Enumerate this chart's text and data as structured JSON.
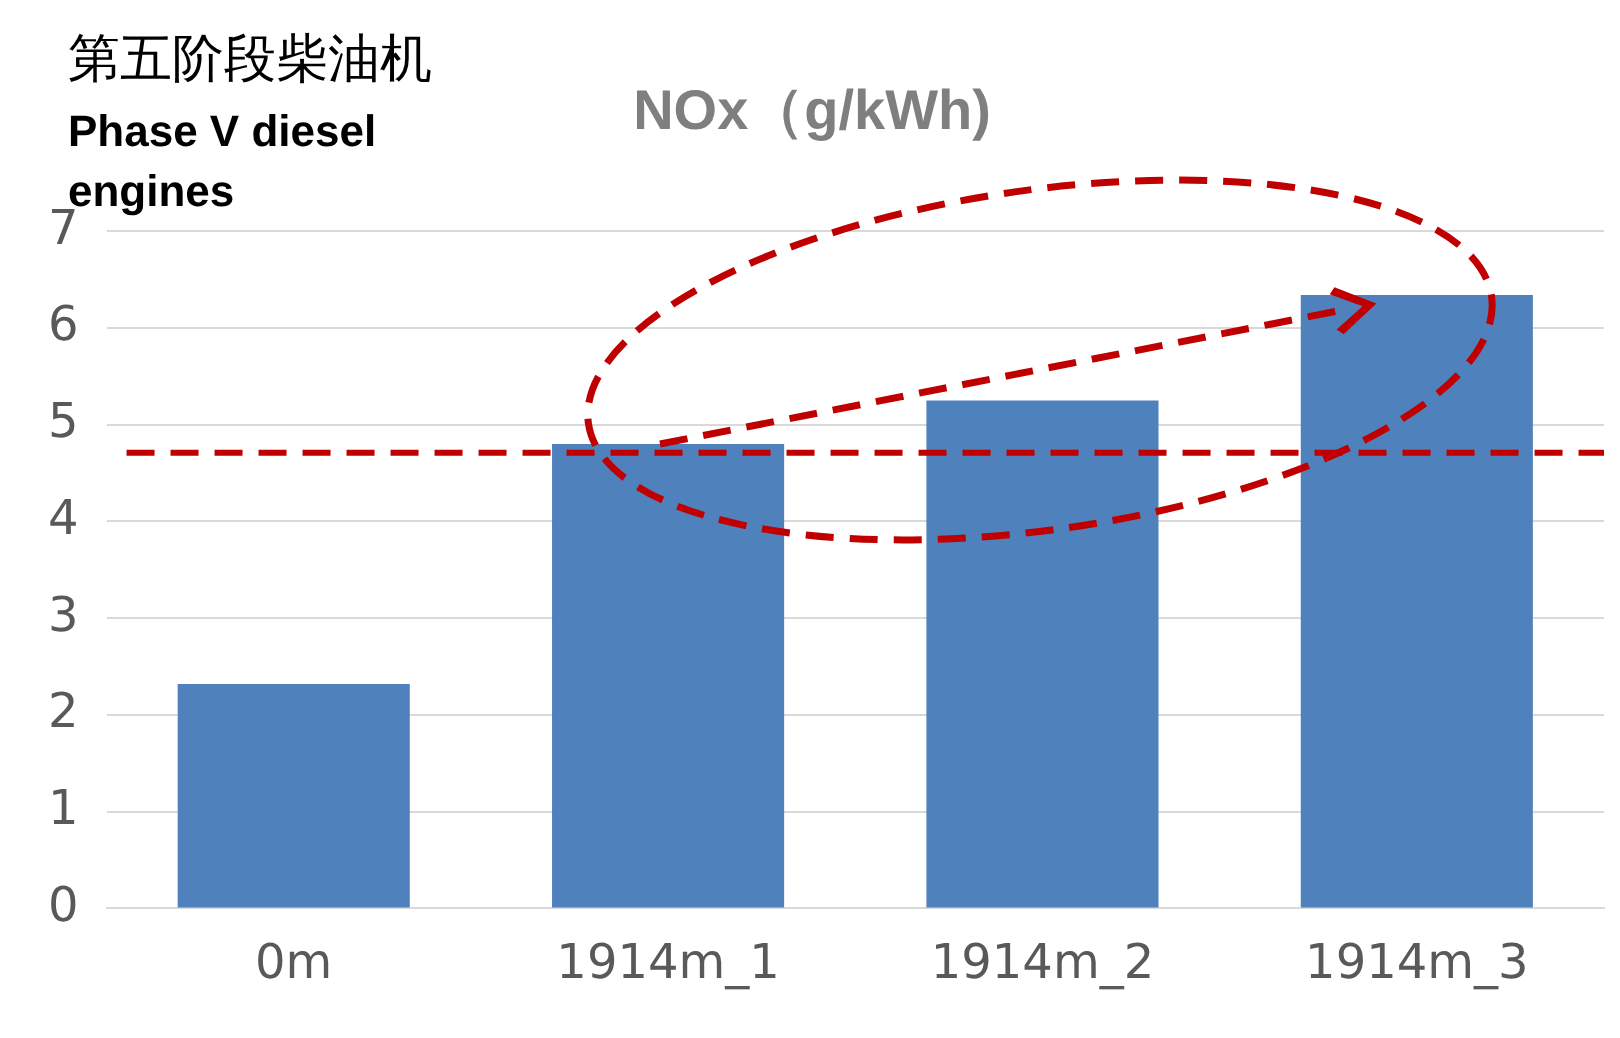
{
  "chart_data": {
    "type": "bar",
    "title": "NOx（g/kWh)",
    "annotations": [
      "第五阶段柴油机",
      "Phase V diesel engines"
    ],
    "categories": [
      "0m",
      "1914m_1",
      "1914m_2",
      "1914m_3"
    ],
    "values": [
      2.32,
      4.8,
      5.25,
      6.34
    ],
    "color": "#4f81bd",
    "ylim": [
      0,
      7
    ],
    "yticks": [
      0,
      1,
      2,
      3,
      4,
      5,
      6,
      7
    ],
    "grid": "y",
    "ref_lines": [
      {
        "axis": "y",
        "value": 4.71,
        "color": "#c00000",
        "line_style": "dashed"
      }
    ]
  }
}
